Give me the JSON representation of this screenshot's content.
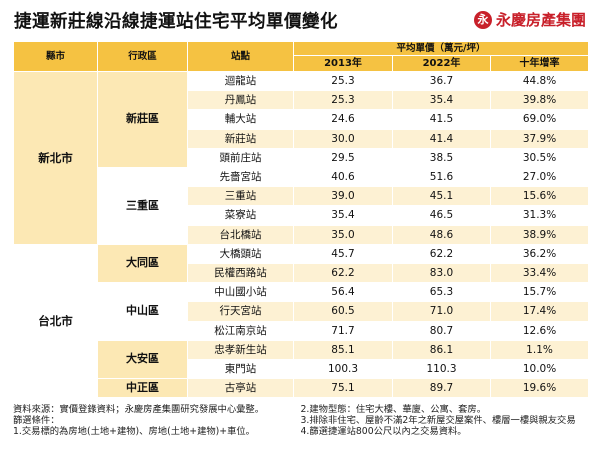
{
  "title": "捷運新莊線沿線捷運站住宅平均單價變化",
  "logo": {
    "mark": "永",
    "text": "永慶房產集團",
    "color": "#c8202a"
  },
  "colors": {
    "header": "#f5c242",
    "light": "#fce8b4",
    "alt_row": "#fdf1d3"
  },
  "table": {
    "headers": {
      "county": "縣市",
      "district": "行政區",
      "station": "站點",
      "price_group": "平均單價（萬元/坪）",
      "y2013": "2013年",
      "y2022": "2022年",
      "growth": "十年增率"
    },
    "counties": [
      {
        "name": "新北市"
      },
      {
        "name": "台北市"
      }
    ],
    "districts": [
      {
        "name": "新莊區"
      },
      {
        "name": "三重區"
      },
      {
        "name": "大同區"
      },
      {
        "name": "中山區"
      },
      {
        "name": "大安區"
      },
      {
        "name": "中正區"
      }
    ],
    "rows": [
      {
        "station": "迴龍站",
        "y2013": "25.3",
        "y2022": "36.7",
        "growth": "44.8%"
      },
      {
        "station": "丹鳳站",
        "y2013": "25.3",
        "y2022": "35.4",
        "growth": "39.8%"
      },
      {
        "station": "輔大站",
        "y2013": "24.6",
        "y2022": "41.5",
        "growth": "69.0%"
      },
      {
        "station": "新莊站",
        "y2013": "30.0",
        "y2022": "41.4",
        "growth": "37.9%"
      },
      {
        "station": "頭前庄站",
        "y2013": "29.5",
        "y2022": "38.5",
        "growth": "30.5%"
      },
      {
        "station": "先嗇宮站",
        "y2013": "40.6",
        "y2022": "51.6",
        "growth": "27.0%"
      },
      {
        "station": "三重站",
        "y2013": "39.0",
        "y2022": "45.1",
        "growth": "15.6%"
      },
      {
        "station": "菜寮站",
        "y2013": "35.4",
        "y2022": "46.5",
        "growth": "31.3%"
      },
      {
        "station": "台北橋站",
        "y2013": "35.0",
        "y2022": "48.6",
        "growth": "38.9%"
      },
      {
        "station": "大橋頭站",
        "y2013": "45.7",
        "y2022": "62.2",
        "growth": "36.2%"
      },
      {
        "station": "民權西路站",
        "y2013": "62.2",
        "y2022": "83.0",
        "growth": "33.4%"
      },
      {
        "station": "中山國小站",
        "y2013": "56.4",
        "y2022": "65.3",
        "growth": "15.7%"
      },
      {
        "station": "行天宮站",
        "y2013": "60.5",
        "y2022": "71.0",
        "growth": "17.4%"
      },
      {
        "station": "松江南京站",
        "y2013": "71.7",
        "y2022": "80.7",
        "growth": "12.6%"
      },
      {
        "station": "忠孝新生站",
        "y2013": "85.1",
        "y2022": "86.1",
        "growth": "1.1%"
      },
      {
        "station": "東門站",
        "y2013": "100.3",
        "y2022": "110.3",
        "growth": "10.0%"
      },
      {
        "station": "古亭站",
        "y2013": "75.1",
        "y2022": "89.7",
        "growth": "19.6%"
      }
    ]
  },
  "notes": {
    "source": "資料來源：實價登錄資料；永慶房產集團研究發展中心彙整。",
    "filter_title": "篩選條件：",
    "c1": "1.交易標的為房地(土地+建物)、房地(土地+建物)+車位。",
    "c2": "2.建物型態：住宅大樓、華廈、公寓、套房。",
    "c3": "3.排除非住宅、屋齡不滿2年之新屋交屋案件、樓層一樓與親友交易",
    "c4": "4.篩選捷運站800公尺以內之交易資料。"
  }
}
